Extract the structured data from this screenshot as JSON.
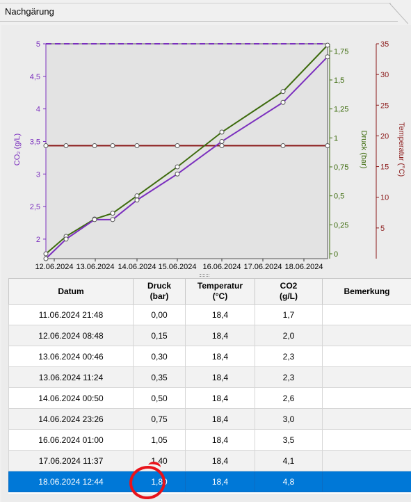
{
  "tab": {
    "title": "Nachgärung"
  },
  "chart_data": {
    "type": "line",
    "x": [
      "11.06.2024 21:48",
      "12.06.2024 08:48",
      "13.06.2024 00:46",
      "13.06.2024 11:24",
      "14.06.2024 00:50",
      "14.06.2024 23:26",
      "16.06.2024 01:00",
      "17.06.2024 11:37",
      "18.06.2024 12:44"
    ],
    "x_tick_labels": [
      "12.06.2024",
      "13.06.2024",
      "14.06.2024",
      "15.06.2024",
      "16.06.2024",
      "17.06.2024",
      "18.06.2024"
    ],
    "series": [
      {
        "name": "CO₂ (g/L)",
        "axis": "left",
        "color": "#7b2fbe",
        "values": [
          1.7,
          2.0,
          2.3,
          2.3,
          2.6,
          3.0,
          3.5,
          4.1,
          4.8
        ]
      },
      {
        "name": "Druck (bar)",
        "axis": "right1",
        "color": "#3d6b0d",
        "values": [
          0.0,
          0.15,
          0.3,
          0.35,
          0.5,
          0.75,
          1.05,
          1.4,
          1.8
        ]
      },
      {
        "name": "Temperatur (°C)",
        "axis": "right2",
        "color": "#8b1a1a",
        "values": [
          18.4,
          18.4,
          18.4,
          18.4,
          18.4,
          18.4,
          18.4,
          18.4,
          18.4
        ]
      }
    ],
    "reference_line": {
      "axis": "left",
      "value": 5,
      "style": "dashed",
      "color": "#7b2fbe"
    },
    "axes": {
      "left": {
        "label": "CO₂ (g/L)",
        "ylim": [
          1.7,
          5
        ],
        "ticks": [
          "2",
          "2,5",
          "3",
          "3,5",
          "4",
          "4,5",
          "5"
        ],
        "color": "#7b2fbe"
      },
      "right1": {
        "label": "Druck (bar)",
        "ylim": [
          0,
          1.8
        ],
        "ticks": [
          "0",
          "0,25",
          "0,5",
          "0,75",
          "1",
          "1,25",
          "1,5",
          "1,75"
        ],
        "color": "#3d6b0d"
      },
      "right2": {
        "label": "Temperatur (°C)",
        "ylim": [
          0,
          35
        ],
        "ticks": [
          "5",
          "10",
          "15",
          "20",
          "25",
          "30",
          "35"
        ],
        "color": "#8b1a1a"
      }
    },
    "grid": false
  },
  "table": {
    "columns": [
      {
        "line1": "Datum",
        "line2": ""
      },
      {
        "line1": "Druck",
        "line2": "(bar)"
      },
      {
        "line1": "Temperatur",
        "line2": "(°C)"
      },
      {
        "line1": "CO2",
        "line2": "(g/L)"
      },
      {
        "line1": "Bemerkung",
        "line2": ""
      }
    ],
    "rows": [
      {
        "datum": "11.06.2024 21:48",
        "druck": "0,00",
        "temp": "18,4",
        "co2": "1,7",
        "note": ""
      },
      {
        "datum": "12.06.2024 08:48",
        "druck": "0,15",
        "temp": "18,4",
        "co2": "2,0",
        "note": ""
      },
      {
        "datum": "13.06.2024 00:46",
        "druck": "0,30",
        "temp": "18,4",
        "co2": "2,3",
        "note": ""
      },
      {
        "datum": "13.06.2024 11:24",
        "druck": "0,35",
        "temp": "18,4",
        "co2": "2,3",
        "note": ""
      },
      {
        "datum": "14.06.2024 00:50",
        "druck": "0,50",
        "temp": "18,4",
        "co2": "2,6",
        "note": ""
      },
      {
        "datum": "14.06.2024 23:26",
        "druck": "0,75",
        "temp": "18,4",
        "co2": "3,0",
        "note": ""
      },
      {
        "datum": "16.06.2024 01:00",
        "druck": "1,05",
        "temp": "18,4",
        "co2": "3,5",
        "note": ""
      },
      {
        "datum": "17.06.2024 11:37",
        "druck": "1,40",
        "temp": "18,4",
        "co2": "4,1",
        "note": ""
      },
      {
        "datum": "18.06.2024 12:44",
        "druck": "1,80",
        "temp": "18,4",
        "co2": "4,8",
        "note": ""
      }
    ],
    "selected_row": 8
  }
}
